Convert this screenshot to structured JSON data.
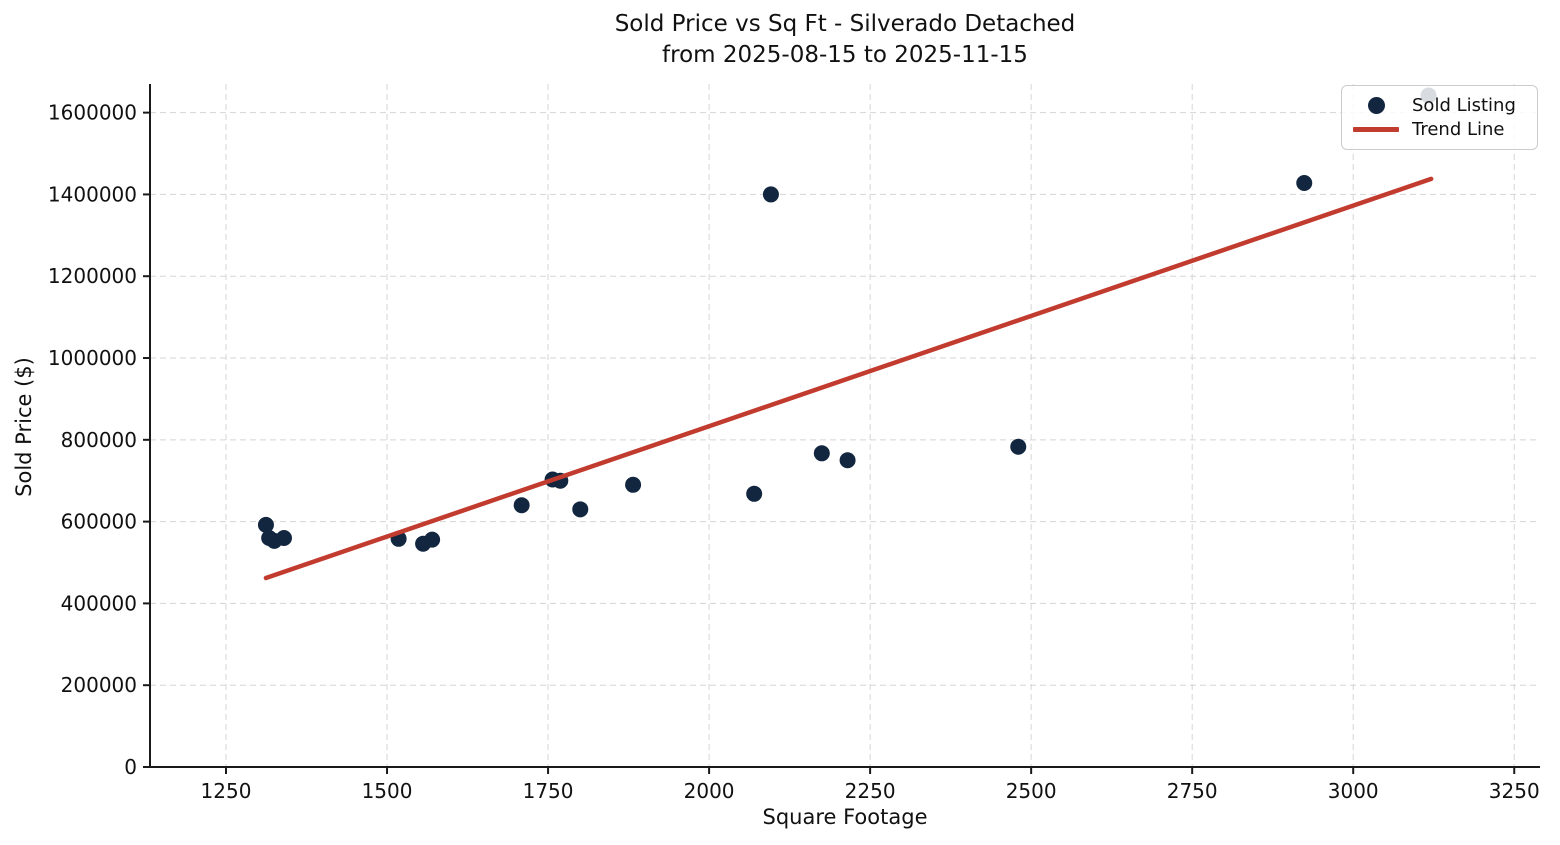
{
  "chart_data": {
    "type": "scatter",
    "title_lines": [
      "Sold Price vs Sq Ft - Silverado Detached",
      "from 2025-08-15 to 2025-11-15"
    ],
    "xlabel": "Square Footage",
    "ylabel": "Sold Price ($)",
    "xlim": [
      1132,
      3290
    ],
    "ylim": [
      0,
      1670000
    ],
    "xticks": [
      1250,
      1500,
      1750,
      2000,
      2250,
      2500,
      2750,
      3000,
      3250
    ],
    "yticks": [
      0,
      200000,
      400000,
      600000,
      800000,
      1000000,
      1200000,
      1400000,
      1600000
    ],
    "grid": true,
    "colors": {
      "marker": "#12263f",
      "trend": "#c23b2f",
      "gridline": "#d5d5d5",
      "spine": "#1a1a1a"
    },
    "legend": {
      "position": "upper right",
      "items": [
        {
          "label": "Sold Listing",
          "type": "marker"
        },
        {
          "label": "Trend Line",
          "type": "line"
        }
      ]
    },
    "series": [
      {
        "name": "Sold Listing",
        "type": "scatter",
        "color": "#12263f",
        "points": [
          [
            1312,
            592000
          ],
          [
            1317,
            560000
          ],
          [
            1325,
            553000
          ],
          [
            1340,
            560000
          ],
          [
            1518,
            558000
          ],
          [
            1556,
            546000
          ],
          [
            1570,
            556000
          ],
          [
            1709,
            640000
          ],
          [
            1757,
            703000
          ],
          [
            1769,
            700000
          ],
          [
            1800,
            630000
          ],
          [
            1882,
            690000
          ],
          [
            2070,
            668000
          ],
          [
            2096,
            1400000
          ],
          [
            2175,
            767000
          ],
          [
            2215,
            750000
          ],
          [
            2480,
            783000
          ],
          [
            2924,
            1428000
          ],
          [
            3117,
            1642000
          ]
        ]
      },
      {
        "name": "Trend Line",
        "type": "line",
        "color": "#c23b2f",
        "points": [
          [
            1312,
            462000
          ],
          [
            3121,
            1438000
          ]
        ]
      }
    ]
  }
}
